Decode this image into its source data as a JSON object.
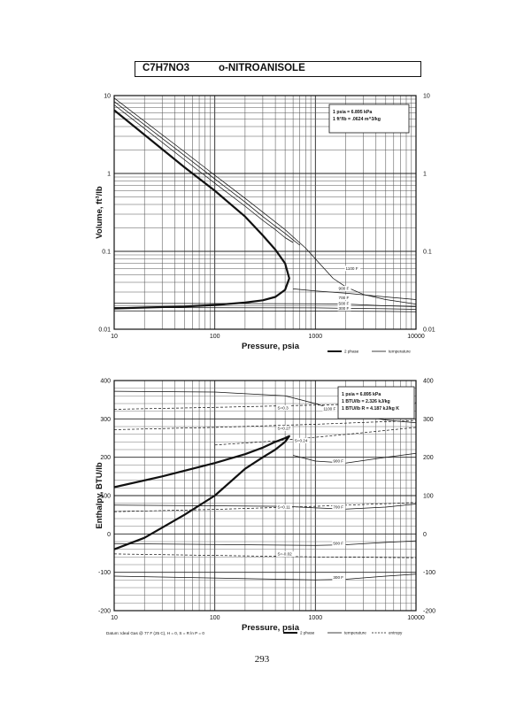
{
  "header": {
    "formula": "C7H7NO3",
    "name": "o-NITROANISOLE"
  },
  "page_number": "293",
  "footnote": "Datum: Ideal Gas @ 77 F (25 C), H = 0, S = R ln P = 0",
  "chart_data": [
    {
      "type": "line",
      "title": "",
      "xlabel": "Pressure,  psia",
      "ylabel": "Volume, ft^3/lb",
      "x_scale": "log",
      "y_scale": "log",
      "xlim": [
        10,
        10000
      ],
      "ylim": [
        0.01,
        10
      ],
      "x_ticks": [
        "10",
        "100",
        "1000",
        "10000"
      ],
      "y_ticks": [
        "10",
        "1",
        "0.1",
        "0.01"
      ],
      "y_ticks_right": [
        "10",
        "1",
        "0.1",
        "0.01"
      ],
      "grid": true,
      "legend": {
        "placement": "bottom-right",
        "entries": [
          "2 phase",
          "temperature"
        ]
      },
      "notes": [
        "1 psia  =  6.895 kPa",
        "1 ft^3/lb  =  .0624 m^3/kg"
      ],
      "series": [
        {
          "name": "2 phase",
          "style": "thick",
          "x": [
            10,
            50,
            100,
            200,
            300,
            400,
            500,
            550,
            500,
            400,
            300,
            200,
            100,
            50,
            20,
            10
          ],
          "y": [
            6.5,
            1.2,
            0.6,
            0.28,
            0.16,
            0.105,
            0.07,
            0.045,
            0.032,
            0.026,
            0.0235,
            0.022,
            0.0205,
            0.0196,
            0.019,
            0.0185
          ]
        },
        {
          "name": "",
          "style": "thin",
          "x": [
            10,
            50,
            100,
            200,
            300,
            400,
            500,
            600
          ],
          "y": [
            7.6,
            1.5,
            0.75,
            0.38,
            0.25,
            0.19,
            0.15,
            0.13
          ]
        },
        {
          "name": "",
          "style": "thin",
          "x": [
            10,
            50,
            100,
            200,
            300,
            400,
            500,
            600,
            700
          ],
          "y": [
            8.4,
            1.7,
            0.85,
            0.43,
            0.28,
            0.21,
            0.17,
            0.14,
            0.12
          ]
        },
        {
          "name": "",
          "style": "thin",
          "x": [
            10,
            50,
            100,
            200,
            500,
            800,
            1000,
            1500,
            2000,
            3000,
            5000,
            10000
          ],
          "y": [
            9.3,
            1.9,
            0.95,
            0.48,
            0.19,
            0.11,
            0.08,
            0.045,
            0.035,
            0.028,
            0.024,
            0.021
          ]
        },
        {
          "name": "500 F",
          "style": "thin",
          "x": [
            600,
            1000,
            2000,
            5000,
            10000
          ],
          "y": [
            0.033,
            0.031,
            0.029,
            0.026,
            0.024
          ]
        },
        {
          "name": "700 F",
          "style": "thin",
          "x": [
            10,
            1000,
            2000,
            5000,
            10000
          ],
          "y": [
            0.0215,
            0.0212,
            0.021,
            0.02,
            0.0195
          ]
        },
        {
          "name": "500 F",
          "style": "thin",
          "x": [
            10,
            1000,
            5000,
            10000
          ],
          "y": [
            0.019,
            0.0188,
            0.0183,
            0.018
          ]
        },
        {
          "name": "300 F",
          "style": "thin",
          "x": [
            10,
            1000,
            5000,
            10000
          ],
          "y": [
            0.0172,
            0.0171,
            0.0169,
            0.0168
          ]
        }
      ],
      "curve_labels": [
        {
          "text": "1100 F",
          "x": 2000,
          "y": 0.058
        },
        {
          "text": "900 F",
          "x": 1700,
          "y": 0.032
        },
        {
          "text": "700 F",
          "x": 1700,
          "y": 0.0245
        },
        {
          "text": "500 F",
          "x": 1700,
          "y": 0.0205
        },
        {
          "text": "300 F",
          "x": 1700,
          "y": 0.0178
        }
      ]
    },
    {
      "type": "line",
      "title": "",
      "xlabel": "Pressure,  psia",
      "ylabel": "Enthalpy, BTU/lb",
      "x_scale": "log",
      "y_scale": "linear",
      "xlim": [
        10,
        10000
      ],
      "ylim": [
        -200,
        400
      ],
      "x_ticks": [
        "10",
        "100",
        "1000",
        "10000"
      ],
      "y_ticks": [
        "400",
        "300",
        "200",
        "100",
        "0",
        "-100",
        "-200"
      ],
      "y_ticks_right": [
        "400",
        "300",
        "200",
        "100",
        "0",
        "-100",
        "-200"
      ],
      "grid": true,
      "legend": {
        "placement": "bottom-right",
        "entries": [
          "2 phase",
          "temperature",
          "entropy"
        ]
      },
      "notes": [
        "1 psia  =  6.895 kPa",
        "1 BTU/lb  =  2.326 kJ/kg",
        "1 BTU/lb R  =  4.187 kJ/kg K"
      ],
      "series": [
        {
          "name": "2 phase",
          "style": "thick",
          "x": [
            10,
            30,
            100,
            200,
            300,
            400,
            500,
            550,
            500,
            400,
            300,
            200,
            100,
            50,
            20,
            10
          ],
          "y": [
            122,
            150,
            185,
            208,
            225,
            240,
            250,
            255,
            240,
            220,
            200,
            170,
            100,
            50,
            -10,
            -40
          ]
        },
        {
          "name": "1100 F",
          "style": "thin",
          "x": [
            10,
            100,
            500,
            1000,
            2000,
            5000,
            10000
          ],
          "y": [
            372,
            370,
            360,
            340,
            315,
            297,
            290
          ]
        },
        {
          "name": "900 F",
          "style": "thin",
          "x": [
            600,
            1000,
            2000,
            5000,
            10000
          ],
          "y": [
            205,
            190,
            185,
            200,
            210
          ]
        },
        {
          "name": "700 F",
          "style": "thin",
          "x": [
            10,
            500,
            1000,
            2000,
            5000,
            10000
          ],
          "y": [
            75,
            72,
            68,
            65,
            70,
            78
          ]
        },
        {
          "name": "500 F",
          "style": "thin",
          "x": [
            10,
            1000,
            2000,
            5000,
            10000
          ],
          "y": [
            -25,
            -30,
            -28,
            -22,
            -18
          ]
        },
        {
          "name": "300 F",
          "style": "thin",
          "x": [
            10,
            1000,
            2000,
            5000,
            10000
          ],
          "y": [
            -110,
            -120,
            -118,
            -110,
            -105
          ]
        },
        {
          "name": "S=0.3",
          "style": "dashed",
          "x": [
            10,
            100,
            1000,
            10000
          ],
          "y": [
            325,
            330,
            336,
            342
          ]
        },
        {
          "name": "S=0.27",
          "style": "dashed",
          "x": [
            10,
            100,
            1000,
            10000
          ],
          "y": [
            272,
            278,
            286,
            296
          ]
        },
        {
          "name": "S=0.24",
          "style": "dashed",
          "x": [
            100,
            300,
            1000,
            3000,
            10000
          ],
          "y": [
            232,
            240,
            252,
            264,
            278
          ]
        },
        {
          "name": "S=0.11",
          "style": "dashed",
          "x": [
            10,
            100,
            1000,
            10000
          ],
          "y": [
            58,
            64,
            72,
            82
          ]
        },
        {
          "name": "S=-0.02",
          "style": "dashed",
          "x": [
            10,
            100,
            1000,
            10000
          ],
          "y": [
            -52,
            -56,
            -60,
            -62
          ]
        }
      ],
      "curve_labels": [
        {
          "text": "S=0.3",
          "x": 420,
          "y": 325
        },
        {
          "text": "S=0.27",
          "x": 420,
          "y": 272
        },
        {
          "text": "S=0.24",
          "x": 620,
          "y": 240
        },
        {
          "text": "1100 F",
          "x": 1200,
          "y": 323
        },
        {
          "text": "900 F",
          "x": 1500,
          "y": 187
        },
        {
          "text": "S=0.11",
          "x": 420,
          "y": 66
        },
        {
          "text": "700 F",
          "x": 1500,
          "y": 67
        },
        {
          "text": "500 F",
          "x": 1500,
          "y": -28
        },
        {
          "text": "S=-0.02",
          "x": 420,
          "y": -56
        },
        {
          "text": "300 F",
          "x": 1500,
          "y": -117
        }
      ]
    }
  ]
}
